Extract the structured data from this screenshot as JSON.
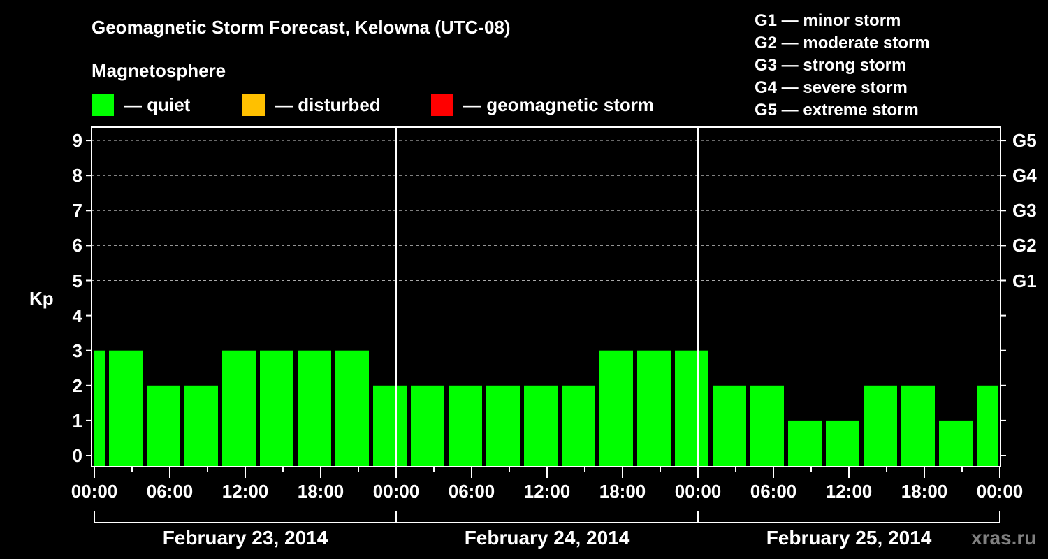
{
  "header": {
    "title": "Geomagnetic Storm Forecast, Kelowna (UTC-08)",
    "subtitle": "Magnetosphere"
  },
  "legend": [
    {
      "label": "— quiet",
      "color": "#00ff00"
    },
    {
      "label": "— disturbed",
      "color": "#ffc000"
    },
    {
      "label": "— geomagnetic storm",
      "color": "#ff0000"
    }
  ],
  "g_scale": [
    "G1 — minor storm",
    "G2 — moderate storm",
    "G3 — strong storm",
    "G4 — severe storm",
    "G5 — extreme storm"
  ],
  "watermark": "xras.ru",
  "chart_data": {
    "type": "bar",
    "title": "Geomagnetic Storm Forecast, Kelowna (UTC-08)",
    "ylabel": "Kp",
    "xlabel": "",
    "ylim": [
      0,
      9
    ],
    "yticks": [
      "0",
      "1",
      "2",
      "3",
      "4",
      "5",
      "6",
      "7",
      "8",
      "9"
    ],
    "right_axis_labels": [
      {
        "kp": 5,
        "label": "G1"
      },
      {
        "kp": 6,
        "label": "G2"
      },
      {
        "kp": 7,
        "label": "G3"
      },
      {
        "kp": 8,
        "label": "G4"
      },
      {
        "kp": 9,
        "label": "G5"
      }
    ],
    "xtick_labels": [
      "00:00",
      "06:00",
      "12:00",
      "18:00",
      "00:00",
      "06:00",
      "12:00",
      "18:00",
      "00:00",
      "06:00",
      "12:00",
      "18:00",
      "00:00"
    ],
    "dates": [
      "February 23, 2014",
      "February 24, 2014",
      "February 25, 2014"
    ],
    "bin_hours": 3,
    "bin_offset_hours": 1,
    "grid": "dashed horizontal at Kp 5-9",
    "legend_position": "top",
    "series": [
      {
        "name": "Kp",
        "color": "#00ff00",
        "note": "first and last bars are partial (clipped at chart edges)",
        "values": [
          3,
          3,
          2,
          2,
          3,
          3,
          3,
          3,
          2,
          2,
          2,
          2,
          2,
          2,
          3,
          3,
          3,
          2,
          2,
          1,
          1,
          2,
          2,
          1,
          2
        ]
      }
    ]
  }
}
